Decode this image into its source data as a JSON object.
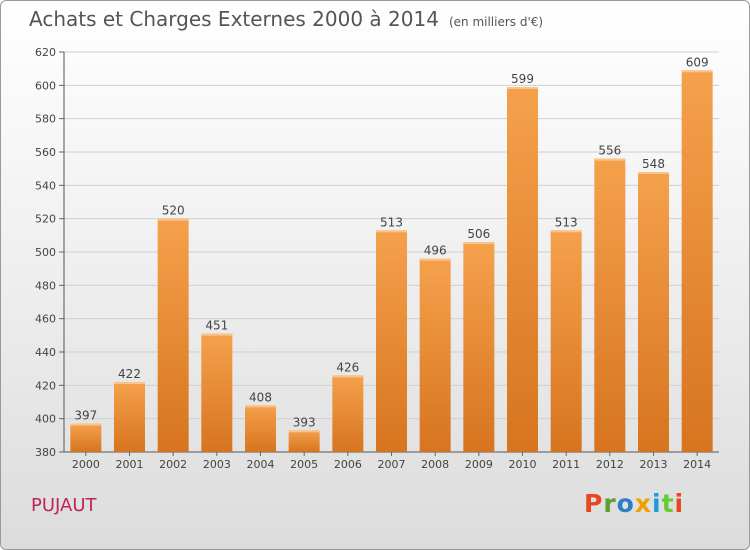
{
  "header": {
    "title": "Achats et Charges Externes 2000 à 2014",
    "subtitle": "(en milliers d'€)"
  },
  "footer": {
    "commune": "PUJAUT",
    "logo_text": "Proxiti",
    "logo_colors": [
      "#e8471d",
      "#5aa02c",
      "#2a7fc8",
      "#f0a100",
      "#1e9cd8",
      "#6c3",
      "#e8471d"
    ]
  },
  "colors": {
    "bar_top": "#f5a14c",
    "bar_bottom": "#d7741f",
    "commune": "#c0245a"
  },
  "chart_data": {
    "type": "bar",
    "categories": [
      "2000",
      "2001",
      "2002",
      "2003",
      "2004",
      "2005",
      "2006",
      "2007",
      "2008",
      "2009",
      "2010",
      "2011",
      "2012",
      "2013",
      "2014"
    ],
    "values": [
      397,
      422,
      520,
      451,
      408,
      393,
      426,
      513,
      496,
      506,
      599,
      513,
      556,
      548,
      609
    ],
    "ylim": [
      380,
      620
    ],
    "yticks": [
      380,
      400,
      420,
      440,
      460,
      480,
      500,
      520,
      540,
      560,
      580,
      600,
      620
    ],
    "grid": true
  }
}
